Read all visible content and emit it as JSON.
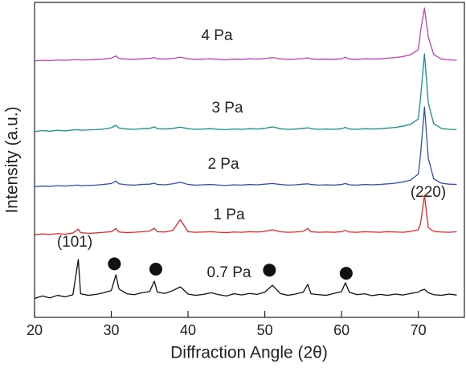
{
  "chart_data": {
    "type": "line",
    "x_label": "Diffraction Angle (2θ)",
    "y_label": "Intensity (a.u.)",
    "xlim": [
      20,
      76
    ],
    "ylim": [
      0,
      100
    ],
    "xticks": [
      20,
      30,
      40,
      50,
      60,
      70
    ],
    "x": [
      20,
      21,
      22,
      23,
      24,
      25,
      25.7,
      26,
      27,
      28,
      29,
      30,
      30.6,
      31,
      32,
      33,
      34,
      35,
      35.6,
      36,
      37,
      38,
      39,
      40,
      41,
      42,
      43,
      44,
      45,
      46,
      47,
      48,
      49,
      50,
      51,
      52,
      53,
      54,
      55,
      55.6,
      56,
      57,
      58,
      59,
      60,
      60.5,
      61,
      62,
      63,
      64,
      65,
      66,
      67,
      68,
      69,
      70,
      70.3,
      70.8,
      71.3,
      72,
      73,
      74,
      75
    ],
    "series": [
      {
        "name": "0.7 Pa",
        "color": "#111111",
        "values": [
          6.0,
          6.8,
          6.2,
          7.0,
          6.5,
          7.2,
          18.4,
          7.5,
          7.0,
          7.3,
          7.8,
          8.5,
          13.5,
          9.0,
          7.5,
          7.2,
          7.8,
          8.2,
          11.5,
          8.0,
          7.6,
          8.5,
          9.7,
          7.4,
          7.0,
          7.3,
          7.8,
          7.2,
          6.8,
          7.5,
          7.1,
          7.6,
          7.3,
          8.0,
          10.2,
          7.6,
          7.0,
          7.4,
          8.0,
          10.5,
          7.5,
          7.2,
          7.0,
          7.6,
          8.2,
          11.0,
          8.0,
          7.2,
          7.5,
          6.9,
          7.3,
          7.0,
          7.4,
          7.1,
          7.6,
          8.0,
          8.5,
          8.9,
          7.8,
          7.2,
          7.0,
          7.4,
          7.1
        ]
      },
      {
        "name": "1 Pa",
        "color": "#e8262a",
        "values": [
          26.2,
          26.5,
          26.3,
          26.6,
          26.4,
          26.8,
          28.0,
          26.9,
          26.7,
          26.8,
          27.0,
          27.2,
          28.2,
          27.1,
          26.9,
          27.0,
          27.2,
          27.4,
          28.3,
          27.2,
          27.1,
          27.6,
          31.0,
          27.2,
          27.0,
          27.1,
          27.2,
          27.0,
          26.9,
          27.1,
          27.0,
          27.2,
          27.1,
          27.3,
          27.8,
          27.2,
          27.0,
          27.1,
          27.3,
          28.2,
          27.2,
          27.0,
          27.1,
          27.0,
          27.2,
          27.6,
          27.1,
          27.0,
          27.2,
          27.1,
          27.0,
          27.2,
          27.1,
          27.0,
          27.3,
          27.8,
          30.0,
          38.8,
          28.5,
          27.3,
          27.1,
          27.0,
          27.2
        ]
      },
      {
        "name": "2 Pa",
        "color": "#2f4fb5",
        "values": [
          41.5,
          41.7,
          41.6,
          41.8,
          41.7,
          41.9,
          42.0,
          41.8,
          41.9,
          42.0,
          42.2,
          42.5,
          43.3,
          42.4,
          42.1,
          42.0,
          42.2,
          42.3,
          42.6,
          42.2,
          42.1,
          42.4,
          42.9,
          42.2,
          42.0,
          42.1,
          42.2,
          42.0,
          41.9,
          42.1,
          42.0,
          42.2,
          42.1,
          42.3,
          42.5,
          42.2,
          42.0,
          42.1,
          42.3,
          42.4,
          42.2,
          42.0,
          42.1,
          42.0,
          42.2,
          42.5,
          42.1,
          42.0,
          42.2,
          42.1,
          42.2,
          42.4,
          42.6,
          43.0,
          43.6,
          45.5,
          52.0,
          66.8,
          50.5,
          44.0,
          42.6,
          42.3,
          42.2
        ]
      },
      {
        "name": "3 Pa",
        "color": "#16918a",
        "values": [
          59.0,
          59.3,
          59.1,
          59.4,
          59.2,
          59.5,
          59.6,
          59.4,
          59.5,
          59.6,
          59.8,
          60.2,
          61.0,
          60.1,
          59.8,
          59.7,
          59.9,
          60.0,
          60.5,
          59.9,
          59.8,
          60.0,
          60.4,
          59.9,
          59.7,
          59.8,
          59.9,
          59.7,
          59.6,
          59.8,
          59.7,
          59.9,
          59.8,
          60.0,
          60.5,
          59.9,
          59.7,
          59.8,
          60.0,
          60.2,
          59.9,
          59.7,
          59.8,
          59.7,
          59.9,
          60.3,
          59.8,
          59.7,
          59.9,
          59.8,
          59.9,
          60.1,
          60.3,
          60.7,
          61.3,
          63.0,
          70.0,
          83.7,
          68.0,
          61.5,
          60.0,
          59.7,
          59.6
        ]
      },
      {
        "name": "4 Pa",
        "color": "#c041b8",
        "values": [
          81.4,
          81.6,
          81.5,
          81.7,
          81.6,
          81.8,
          81.9,
          81.7,
          81.8,
          81.9,
          82.0,
          82.3,
          83.0,
          82.2,
          82.0,
          81.9,
          82.1,
          82.2,
          82.5,
          82.1,
          82.0,
          82.2,
          82.6,
          82.1,
          81.9,
          82.0,
          82.1,
          81.9,
          81.8,
          82.0,
          81.9,
          82.1,
          82.0,
          82.2,
          82.5,
          82.1,
          81.9,
          82.0,
          82.2,
          82.4,
          82.1,
          81.9,
          82.0,
          81.9,
          82.1,
          82.6,
          82.0,
          81.9,
          82.1,
          82.0,
          82.1,
          82.3,
          82.5,
          82.8,
          83.4,
          85.0,
          91.0,
          98.2,
          89.0,
          83.5,
          82.0,
          81.8,
          81.6
        ]
      }
    ],
    "markers": {
      "x": [
        30.4,
        35.8,
        50.6,
        60.6
      ],
      "y": [
        17,
        15.3,
        15,
        14
      ]
    },
    "annotations": [
      "(101)",
      "(220)"
    ]
  }
}
